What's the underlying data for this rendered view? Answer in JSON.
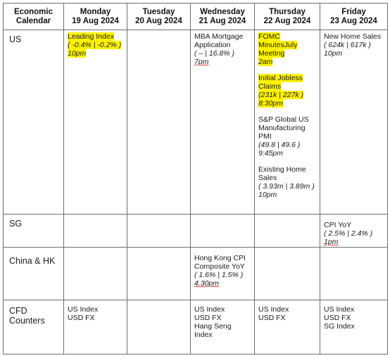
{
  "headers": [
    {
      "line1": "Economic",
      "line2": "Calendar"
    },
    {
      "line1": "Monday",
      "line2": "19 Aug 2024"
    },
    {
      "line1": "Tuesday",
      "line2": "20 Aug 2024"
    },
    {
      "line1": "Wednesday",
      "line2": "21 Aug 2024"
    },
    {
      "line1": "Thursday",
      "line2": "22 Aug 2024"
    },
    {
      "line1": "Friday",
      "line2": "23 Aug 2024"
    }
  ],
  "rows": {
    "us": {
      "label": "US",
      "mon": {
        "l1": "Leading Index",
        "l2": "( -0.4% | -0.2% )",
        "l3": "10pm"
      },
      "wed": {
        "l1": "MBA Mortgage",
        "l2": "Application",
        "l3": "( – | 16.8% )",
        "l4": "7pm"
      },
      "thu": {
        "e1": {
          "l1": "FOMC",
          "l2": "MinutesJuly",
          "l3": "Meeting",
          "l4": "2am"
        },
        "e2": {
          "l1": "Initial Jobless",
          "l2": "Claims",
          "l3": "(231k | 227k )",
          "l4": "8:30pm"
        },
        "e3": {
          "l1": "S&P Global US",
          "l2": "Manufacturing",
          "l3": "PMI",
          "l4": "(49.8 | 49.6 )",
          "l5": "9:45pm"
        },
        "e4": {
          "l1": "Existing Home",
          "l2": "Sales",
          "l3": "( 3.93m | 3.89m )",
          "l4": "10pm"
        }
      },
      "fri": {
        "l1": "New Home Sales",
        "l2": "( 624k | 617k )",
        "l3": "10pm"
      }
    },
    "sg": {
      "label": "SG",
      "fri": {
        "l1": "CPI YoY",
        "l2": "( 2.5% | 2.4% )",
        "l3": "1pm"
      }
    },
    "china": {
      "label": "China & HK",
      "wed": {
        "l1": "Hong Kong CPI",
        "l2": "Composite YoY",
        "l3": "( 1.6% | 1.5% )",
        "l4": "4.30pm"
      }
    },
    "cfd": {
      "label1": "CFD",
      "label2": "Counters",
      "mon": [
        "US Index",
        "USD FX"
      ],
      "wed": [
        "US Index",
        "USD FX",
        "Hang Seng",
        "Index"
      ],
      "thu": [
        "US Index",
        "USD FX"
      ],
      "fri": [
        "US Index",
        "USD FX",
        "SG Index"
      ]
    }
  },
  "colors": {
    "highlight": "#fff200",
    "border": "#6e6e6e",
    "underline": "#e53935"
  }
}
